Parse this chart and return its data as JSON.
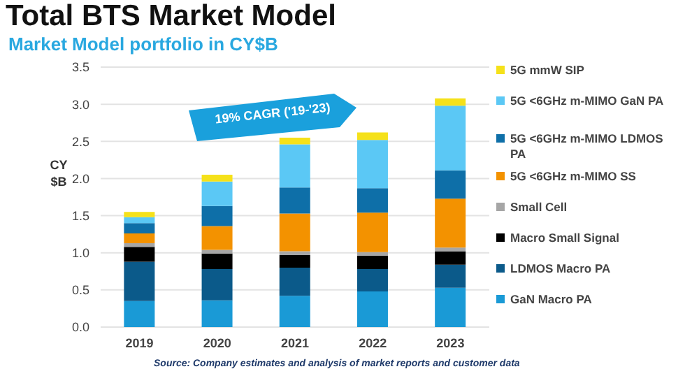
{
  "chart_data": {
    "type": "bar",
    "title": "Total BTS Market Model",
    "subtitle": "Market Model portfolio in CY$B",
    "ylabel": "CY $B",
    "stacked": true,
    "categories": [
      "2019",
      "2020",
      "2021",
      "2022",
      "2023"
    ],
    "series": [
      {
        "name": "GaN Macro PA",
        "color": "#1a9ad6",
        "values": [
          0.35,
          0.36,
          0.42,
          0.48,
          0.53
        ]
      },
      {
        "name": "LDMOS Macro PA",
        "color": "#0b5a8a",
        "values": [
          0.53,
          0.42,
          0.38,
          0.3,
          0.31
        ]
      },
      {
        "name": "Macro Small Signal",
        "color": "#000000",
        "values": [
          0.2,
          0.21,
          0.17,
          0.18,
          0.18
        ]
      },
      {
        "name": "Small Cell",
        "color": "#a6a6a6",
        "values": [
          0.05,
          0.05,
          0.05,
          0.05,
          0.05
        ]
      },
      {
        "name": "5G <6GHz m-MIMO SS",
        "color": "#f39200",
        "values": [
          0.13,
          0.32,
          0.51,
          0.53,
          0.66
        ]
      },
      {
        "name": "5G <6GHz m-MIMO LDMOS PA",
        "color": "#0e6fa8",
        "values": [
          0.14,
          0.27,
          0.35,
          0.33,
          0.38
        ]
      },
      {
        "name": "5G <6GHz m-MIMO GaN PA",
        "color": "#5bc8f5",
        "values": [
          0.08,
          0.33,
          0.58,
          0.65,
          0.87
        ]
      },
      {
        "name": "5G mmW SIP",
        "color": "#f5e11a",
        "values": [
          0.07,
          0.09,
          0.09,
          0.1,
          0.1
        ]
      }
    ],
    "ylim": [
      0,
      3.5
    ],
    "yticks": [
      {
        "value": 0,
        "label": "0.0"
      },
      {
        "value": 0.5,
        "label": "0.5"
      },
      {
        "value": 1,
        "label": "1.0"
      },
      {
        "value": 1.5,
        "label": "1.5"
      },
      {
        "value": 2,
        "label": "2.0"
      },
      {
        "value": 2.5,
        "label": "2.5"
      },
      {
        "value": 3,
        "label": "3.0"
      },
      {
        "value": 3.5,
        "label": "3.5"
      }
    ],
    "grid": "y",
    "legend": "right",
    "annotations": [
      "19% CAGR ('19-'23)",
      "Source: Company estimates and analysis of market reports and customer data"
    ]
  }
}
